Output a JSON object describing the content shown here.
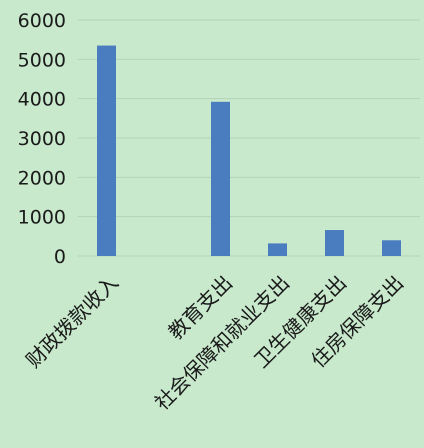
{
  "chart_data": {
    "type": "bar",
    "categories": [
      "财政拨款收入",
      "",
      "教育支出",
      "社会保障和就业支出",
      "卫生健康支出",
      "住房保障支出"
    ],
    "values": [
      5350,
      null,
      3920,
      320,
      660,
      400
    ],
    "ylim": [
      0,
      6000
    ],
    "yticks": [
      0,
      1000,
      2000,
      3000,
      4000,
      5000,
      6000
    ],
    "grid": true,
    "legend": "none",
    "colors": {
      "bar": "#4a7dbf",
      "background": "#c8e9cc",
      "gridline": "#b3d3b6",
      "text": "#1a1a1a"
    }
  }
}
